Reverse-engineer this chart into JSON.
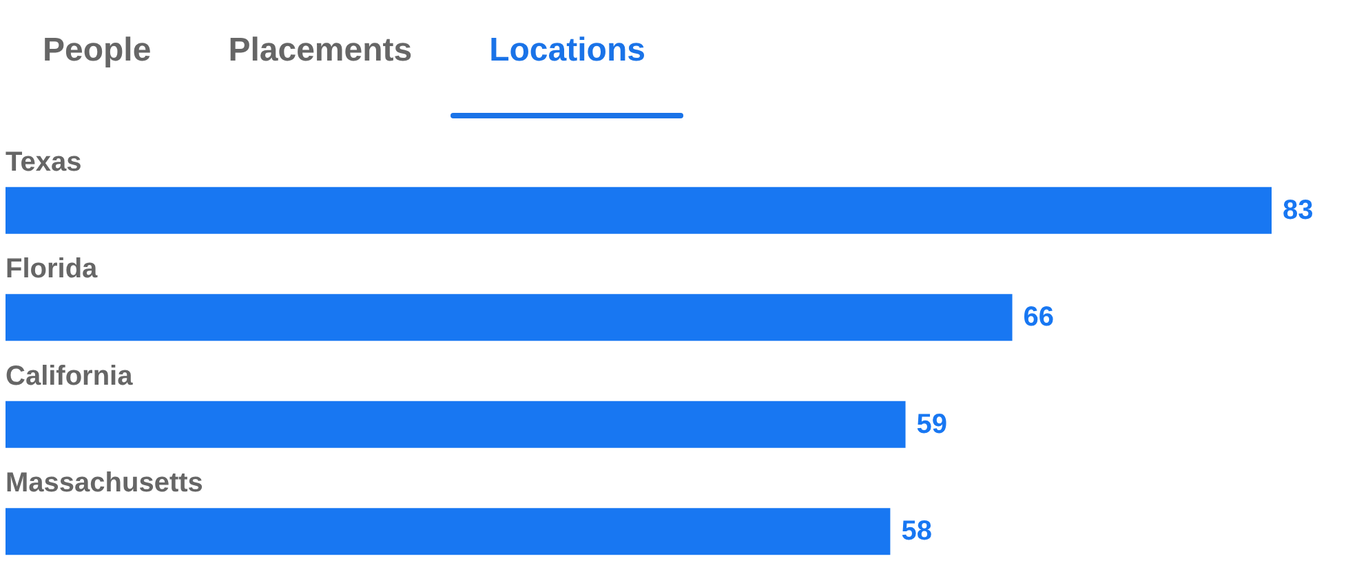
{
  "chart_data": {
    "type": "bar",
    "orientation": "horizontal",
    "title": "Locations",
    "annotations": [
      "People",
      "Placements"
    ],
    "categories": [
      "Texas",
      "Florida",
      "California",
      "Massachusetts"
    ],
    "values": [
      83,
      66,
      59,
      58
    ],
    "color": "#1877f2",
    "data_labels": true
  }
}
